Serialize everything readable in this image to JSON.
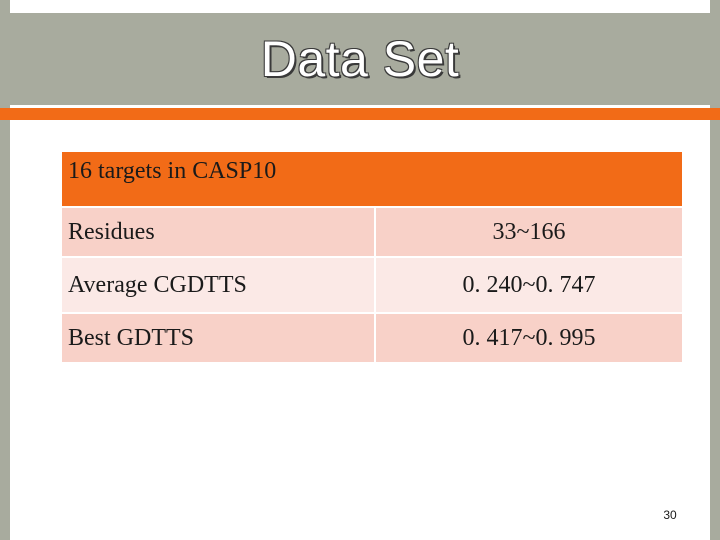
{
  "slide": {
    "title": "Data Set",
    "page_number": "30"
  },
  "table": {
    "header": "16 targets in CASP10",
    "rows": [
      {
        "label": "Residues",
        "value": "33~166"
      },
      {
        "label": "Average CGDTTS",
        "value": "0. 240~0. 747"
      },
      {
        "label": "Best GDTTS",
        "value": "0. 417~0. 995"
      }
    ]
  },
  "colors": {
    "title_band": "#a8ab9e",
    "accent": "#f26b17",
    "row_dark": "#f8d1c8",
    "row_light": "#fbe9e6"
  }
}
